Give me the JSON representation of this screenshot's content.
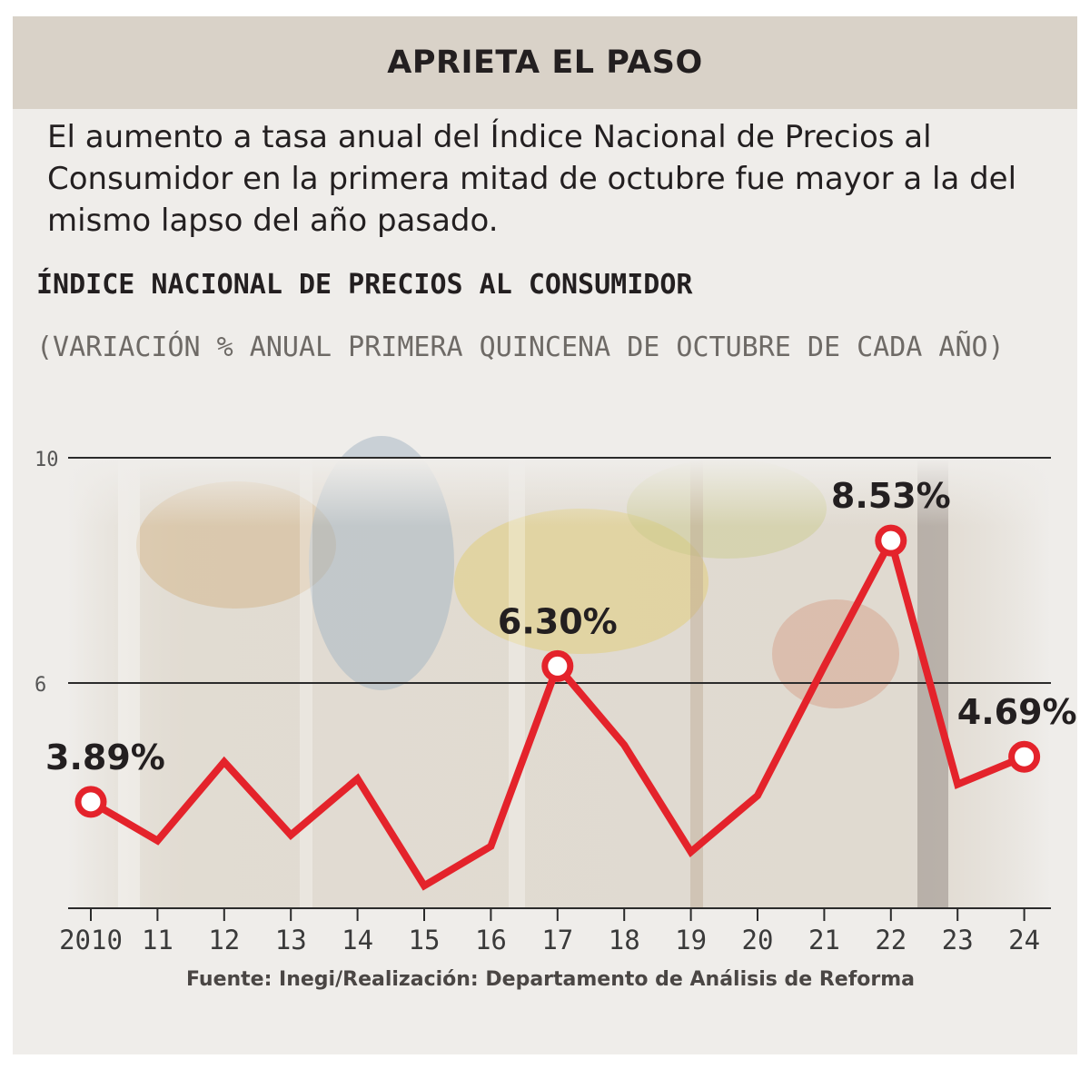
{
  "header": {
    "title": "APRIETA EL PASO"
  },
  "intro": {
    "text": "El aumento a tasa anual del Índice Nacional de Precios al Consumidor en la primera mitad de octubre fue mayor a la del mismo lapso del año pasado."
  },
  "chart_data": {
    "type": "line",
    "title": "ÍNDICE NACIONAL DE PRECIOS AL CONSUMIDOR",
    "subtitle": "(VARIACIÓN % ANUAL PRIMERA QUINCENA DE OCTUBRE DE CADA AÑO)",
    "xlabel": "",
    "ylabel": "",
    "categories": [
      "2010",
      "11",
      "12",
      "13",
      "14",
      "15",
      "16",
      "17",
      "18",
      "19",
      "20",
      "21",
      "22",
      "23",
      "24"
    ],
    "values": [
      3.89,
      3.2,
      4.6,
      3.3,
      4.3,
      2.4,
      3.1,
      6.3,
      4.9,
      3.0,
      4.0,
      6.3,
      8.53,
      4.2,
      4.69
    ],
    "ylim": [
      2,
      10
    ],
    "yticks": [
      6,
      10
    ],
    "gridlines": [
      6,
      10
    ],
    "annotations": [
      {
        "index": 0,
        "label": "3.89%"
      },
      {
        "index": 7,
        "label": "6.30%"
      },
      {
        "index": 12,
        "label": "8.53%"
      },
      {
        "index": 14,
        "label": "4.69%"
      }
    ],
    "line_color": "#e4232b",
    "grid_color": "#2b2b2b"
  },
  "source": {
    "text": "Fuente: Inegi/Realización: Departamento de Análisis de Reforma"
  }
}
